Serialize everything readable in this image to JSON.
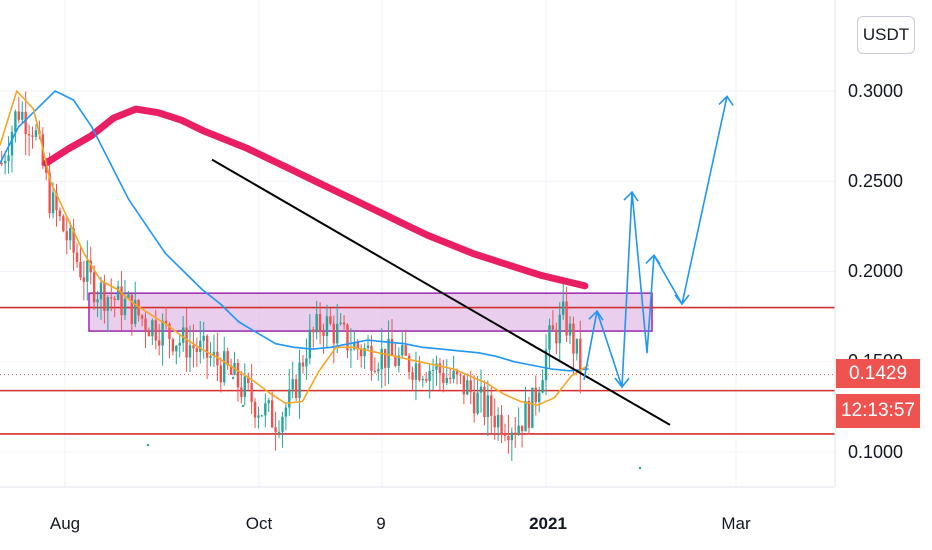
{
  "chart_data": {
    "type": "candlestick",
    "quote_currency": "USDT",
    "y_ticks": [
      "0.3000",
      "0.2500",
      "0.2000",
      "0.1500",
      "0.1000"
    ],
    "x_ticks": [
      "Aug",
      "Oct",
      "9",
      "2021",
      "Mar"
    ],
    "last_price": "0.1429",
    "countdown": "12:13:57",
    "grid": true,
    "colors": {
      "up": "#26a69a",
      "down": "#ef5350",
      "ma_slow": "#e91e63",
      "ma_mid": "#2196f3",
      "ma_fast": "#f5a623",
      "trendline": "#000000",
      "zone_fill": "#e1bee7",
      "zone_border": "#9c27b0",
      "levels": "#d32f2f",
      "projection": "#2196f3"
    },
    "horizontal_levels": [
      0.18,
      0.134,
      0.11
    ],
    "resistance_zone": [
      0.167,
      0.188
    ],
    "trendline": {
      "from": [
        "Sep-03",
        0.262
      ],
      "to": [
        "Feb-04",
        0.115
      ]
    },
    "projection_path": [
      [
        "Jan-11",
        0.14
      ],
      [
        "Jan-15",
        0.178
      ],
      [
        "Jan-20",
        0.136
      ],
      [
        "Jan-27",
        0.244
      ],
      [
        "Feb-02",
        0.155
      ],
      [
        "Feb-05",
        0.209
      ],
      [
        "Feb-08",
        0.182
      ],
      [
        "Feb-21",
        0.297
      ]
    ],
    "series": [
      {
        "values": [
          0.26,
          0.29,
          0.28,
          0.24,
          0.22,
          0.2,
          0.19,
          0.185,
          0.18,
          0.172,
          0.168,
          0.162,
          0.158,
          0.152,
          0.145,
          0.135,
          0.125,
          0.118,
          0.128,
          0.16,
          0.172,
          0.165,
          0.158,
          0.155,
          0.153,
          0.15,
          0.148,
          0.146,
          0.14,
          0.135,
          0.125,
          0.118,
          0.115,
          0.125,
          0.16,
          0.175,
          0.148
        ]
      },
      {
        "values": [
          0.26,
          0.268,
          0.275,
          0.285,
          0.29,
          0.288,
          0.284,
          0.278,
          0.273,
          0.268,
          0.262,
          0.256,
          0.25,
          0.244,
          0.238,
          0.232,
          0.226,
          0.22,
          0.215,
          0.21,
          0.206,
          0.202,
          0.198,
          0.195,
          0.192
        ]
      },
      {
        "values": [
          0.26,
          0.28,
          0.29,
          0.3,
          0.295,
          0.28,
          0.26,
          0.24,
          0.225,
          0.21,
          0.2,
          0.19,
          0.182,
          0.172,
          0.166,
          0.16,
          0.158,
          0.157,
          0.158,
          0.16,
          0.162,
          0.161,
          0.16,
          0.158,
          0.157,
          0.156,
          0.155,
          0.153,
          0.15,
          0.148,
          0.146,
          0.145,
          0.146
        ]
      },
      {
        "values": [
          0.27,
          0.3,
          0.29,
          0.25,
          0.23,
          0.21,
          0.195,
          0.19,
          0.182,
          0.176,
          0.17,
          0.163,
          0.157,
          0.152,
          0.146,
          0.14,
          0.133,
          0.127,
          0.128,
          0.145,
          0.158,
          0.158,
          0.156,
          0.154,
          0.152,
          0.15,
          0.148,
          0.146,
          0.142,
          0.138,
          0.132,
          0.128,
          0.126,
          0.13,
          0.142,
          0.148
        ]
      }
    ]
  }
}
